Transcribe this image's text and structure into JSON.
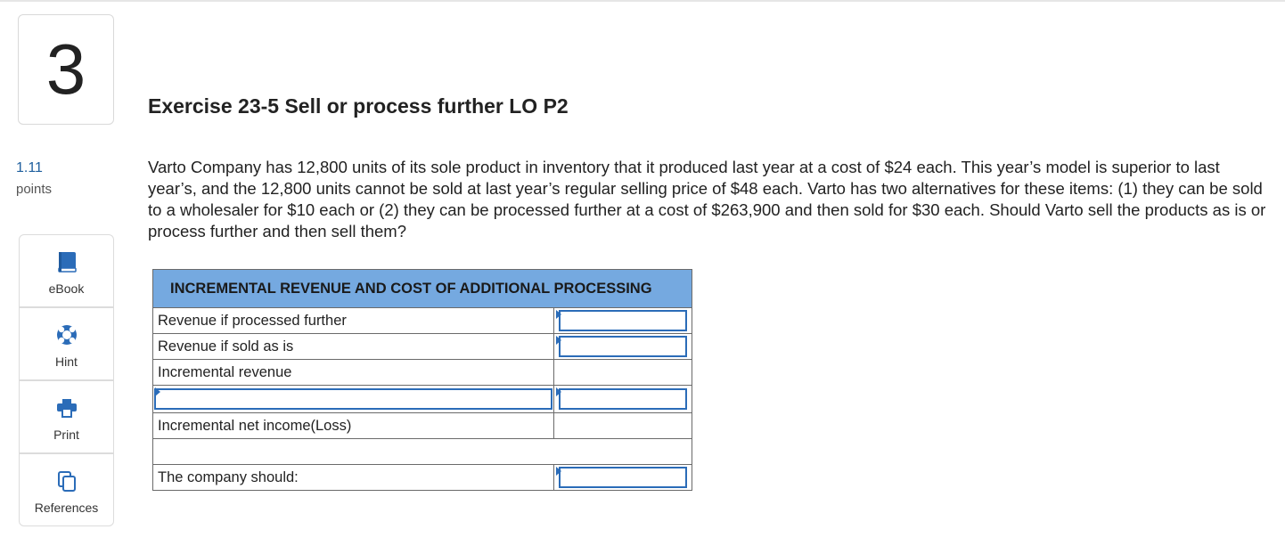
{
  "question": {
    "number": "3",
    "points_value": "1.11",
    "points_label": "points"
  },
  "tools": [
    {
      "label": "eBook",
      "icon": "book-icon"
    },
    {
      "label": "Hint",
      "icon": "lifebuoy-icon"
    },
    {
      "label": "Print",
      "icon": "printer-icon"
    },
    {
      "label": "References",
      "icon": "copy-icon"
    }
  ],
  "exercise": {
    "title": "Exercise 23-5 Sell or process further LO P2",
    "text": "Varto Company has 12,800 units of its sole product in inventory that it produced last year at a cost of $24 each. This year’s model is superior to last year’s, and the 12,800 units cannot be sold at last year’s regular selling price of $48 each. Varto has two alternatives for these items: (1) they can be sold to a wholesaler for $10 each or (2) they can be processed further at a cost of $263,900 and then sold for $30 each. Should Varto sell the products as is or process further and then sell them?"
  },
  "table": {
    "header": "INCREMENTAL REVENUE AND COST OF ADDITIONAL PROCESSING",
    "rows": {
      "revenue_processed": "Revenue if processed further",
      "revenue_as_is": "Revenue if sold as is",
      "incremental_revenue": "Incremental revenue",
      "incremental_net_income": "Incremental net income(Loss)",
      "company_should": "The company should:"
    }
  },
  "colors": {
    "header_bg": "#75a9e0",
    "input_border": "#2b6cb8",
    "points_blue": "#1f5f9e"
  }
}
